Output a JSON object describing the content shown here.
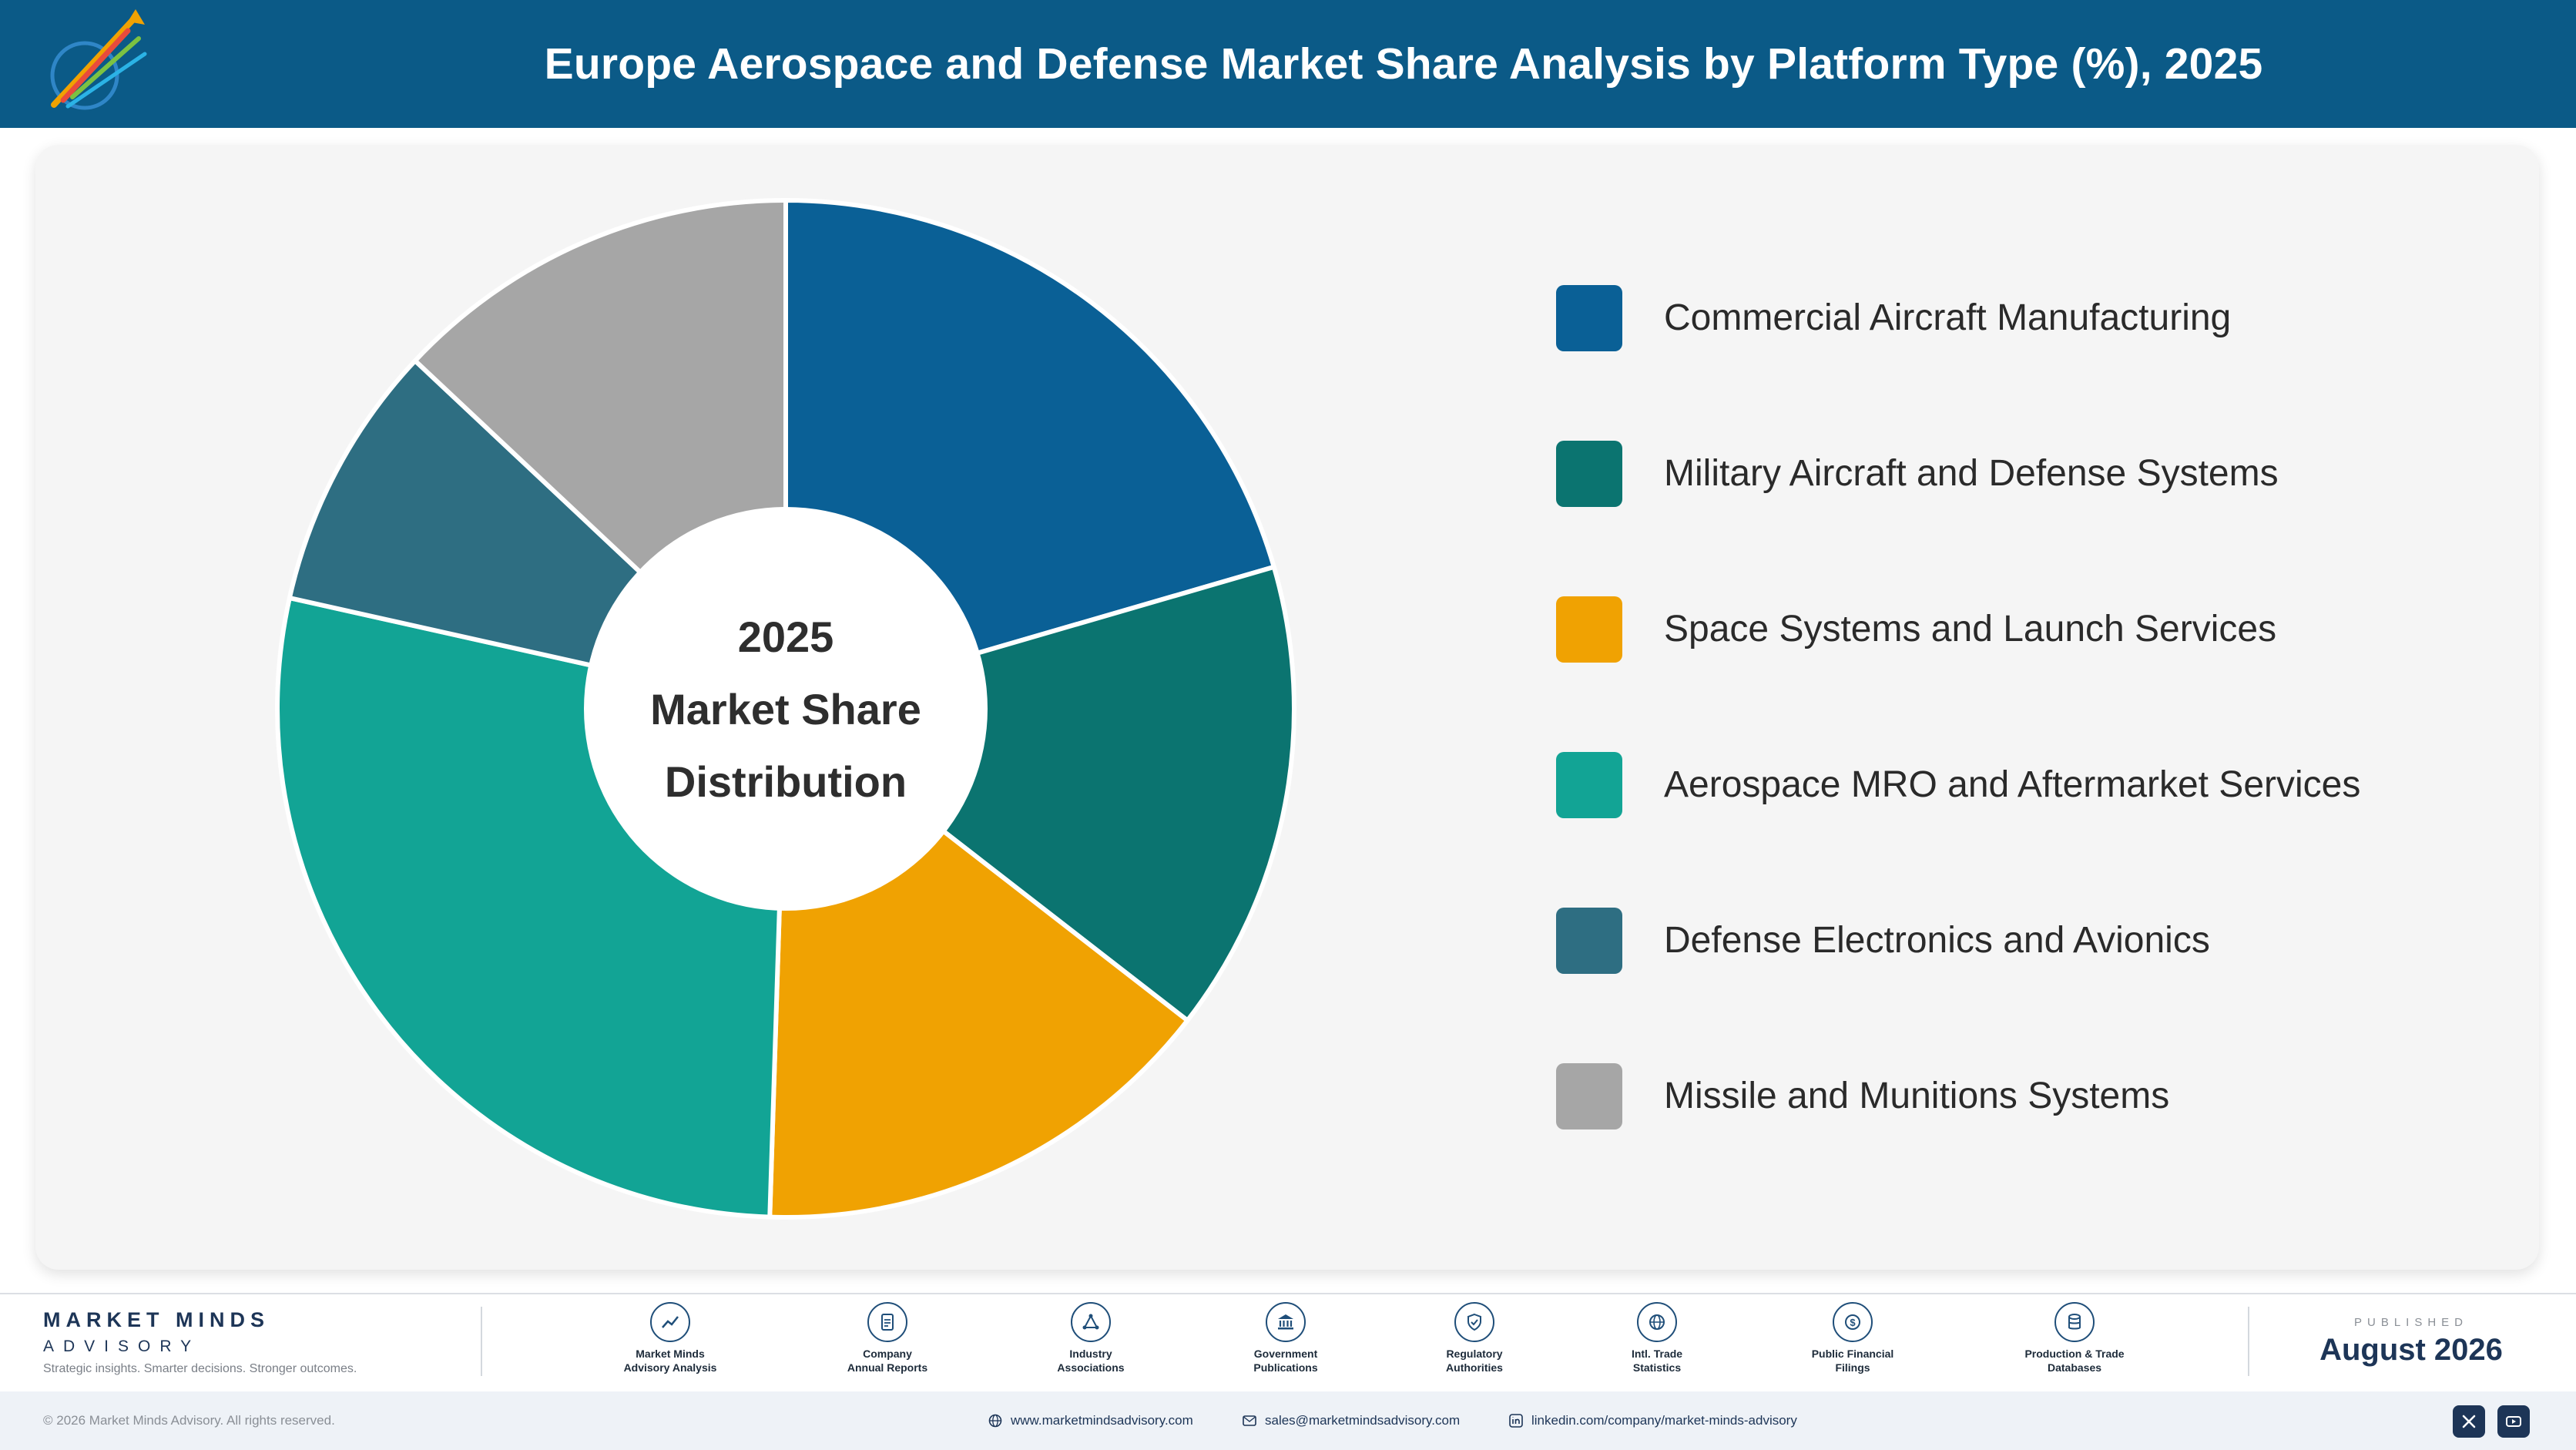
{
  "header": {
    "title": "Europe Aerospace and Defense Market Share Analysis by Platform Type (%), 2025"
  },
  "chart_data": {
    "type": "pie",
    "title": "Europe Aerospace and Defense Market Share Analysis by Platform Type (%), 2025",
    "center_label": [
      "2025",
      "Market Share",
      "Distribution"
    ],
    "legend_position": "right",
    "categories": [
      "Commercial Aircraft Manufacturing",
      "Military Aircraft and Defense Systems",
      "Space Systems and Launch Services",
      "Aerospace MRO and Aftermarket Services",
      "Defense Electronics and Avionics",
      "Missile and Munitions Systems"
    ],
    "values": [
      20.5,
      15.0,
      15.0,
      28.0,
      8.5,
      13.0
    ],
    "colors": [
      "#0a6096",
      "#0b7470",
      "#f0a202",
      "#12a495",
      "#2e6e82",
      "#a6a6a6"
    ]
  },
  "footer": {
    "brand_name": "MARKET MINDS",
    "brand_sub": "ADVISORY",
    "tagline": "Strategic insights. Smarter decisions. Stronger outcomes.",
    "sources": [
      {
        "line1": "Market Minds",
        "line2": "Advisory Analysis",
        "icon": "chart-line-icon"
      },
      {
        "line1": "Company",
        "line2": "Annual Reports",
        "icon": "document-icon"
      },
      {
        "line1": "Industry",
        "line2": "Associations",
        "icon": "network-icon"
      },
      {
        "line1": "Government",
        "line2": "Publications",
        "icon": "bank-icon"
      },
      {
        "line1": "Regulatory",
        "line2": "Authorities",
        "icon": "shield-icon"
      },
      {
        "line1": "Intl. Trade",
        "line2": "Statistics",
        "icon": "globe-icon"
      },
      {
        "line1": "Public Financial",
        "line2": "Filings",
        "icon": "coin-icon"
      },
      {
        "line1": "Production & Trade",
        "line2": "Databases",
        "icon": "database-icon"
      }
    ],
    "published_label": "PUBLISHED",
    "published_date": "August 2026"
  },
  "bottom_bar": {
    "copyright": "© 2026 Market Minds Advisory. All rights reserved.",
    "website": "www.marketmindsadvisory.com",
    "email": "sales@marketmindsadvisory.com",
    "linkedin": "linkedin.com/company/market-minds-advisory"
  }
}
